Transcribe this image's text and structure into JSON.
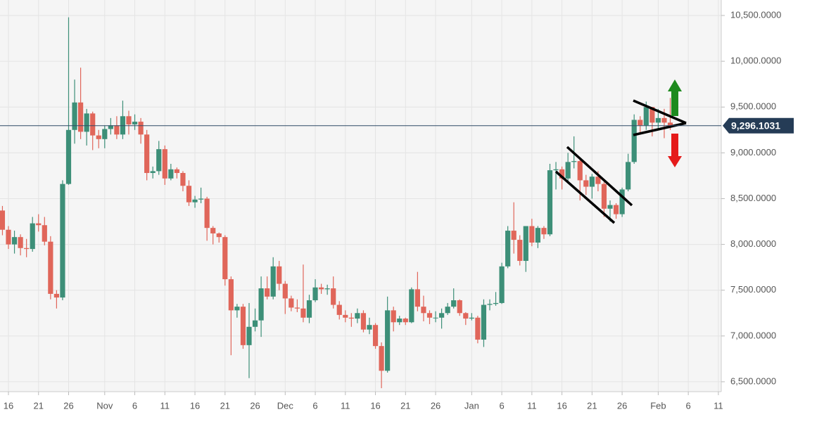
{
  "chart_data": {
    "type": "candlestick",
    "categories": [
      null,
      "16",
      null,
      null,
      null,
      null,
      "21",
      null,
      null,
      null,
      null,
      "26",
      null,
      null,
      null,
      null,
      null,
      "Nov",
      null,
      null,
      null,
      null,
      "6",
      null,
      null,
      null,
      null,
      "11",
      null,
      null,
      null,
      null,
      "16",
      null,
      null,
      null,
      null,
      "21",
      null,
      null,
      null,
      null,
      "26",
      null,
      null,
      null,
      null,
      "Dec",
      null,
      null,
      null,
      null,
      "6",
      null,
      null,
      null,
      null,
      "11",
      null,
      null,
      null,
      null,
      "16",
      null,
      null,
      null,
      null,
      "21",
      null,
      null,
      null,
      null,
      "26",
      null,
      null,
      null,
      null,
      null,
      "Jan",
      null,
      null,
      null,
      null,
      "6",
      null,
      null,
      null,
      null,
      "11",
      null,
      null,
      null,
      null,
      "16",
      null,
      null,
      null,
      null,
      "21",
      null,
      null,
      null,
      null,
      "26",
      null,
      null,
      null,
      null,
      null,
      "Feb",
      null,
      null,
      null,
      null,
      "6",
      null,
      null,
      null,
      null,
      "11"
    ],
    "open": [
      8370,
      8160,
      8000,
      8080,
      7960,
      7950,
      8230,
      8210,
      8030,
      7460,
      7420,
      8660,
      9250,
      9550,
      9230,
      9430,
      9190,
      9150,
      9260,
      9300,
      9200,
      9400,
      9310,
      9340,
      9200,
      8780,
      8800,
      9040,
      8720,
      8820,
      8780,
      8640,
      8460,
      8490,
      8500,
      8180,
      8120,
      8080,
      7620,
      7280,
      7320,
      6900,
      7100,
      7170,
      7520,
      7430,
      7760,
      7570,
      7410,
      7310,
      7300,
      7200,
      7390,
      7530,
      7510,
      7520,
      7340,
      7230,
      7200,
      7190,
      7250,
      7070,
      7120,
      6890,
      6620,
      7280,
      7150,
      7190,
      7150,
      7510,
      7320,
      7250,
      7200,
      7200,
      7250,
      7320,
      7390,
      7250,
      7190,
      7200,
      6960,
      7340,
      7350,
      7360,
      7760,
      8150,
      8050,
      7820,
      8200,
      8020,
      8180,
      8110,
      8810,
      8820,
      8720,
      8900,
      8910,
      8700,
      8630,
      8740,
      8660,
      8390,
      8430,
      8330,
      8600,
      8900,
      9360,
      9300,
      9500,
      9330,
      9380,
      9330,
      null,
      null,
      null,
      null,
      null,
      null,
      null,
      null
    ],
    "high": [
      8420,
      8200,
      8150,
      8110,
      8060,
      8300,
      8330,
      8300,
      8090,
      7500,
      8700,
      10480,
      9800,
      9930,
      9480,
      9450,
      9250,
      9300,
      9380,
      9400,
      9570,
      9460,
      9420,
      9380,
      9250,
      8850,
      9130,
      9080,
      8880,
      8840,
      8800,
      8700,
      8530,
      8620,
      8520,
      8200,
      8130,
      8100,
      7650,
      7350,
      7350,
      7360,
      7300,
      7650,
      7650,
      7860,
      7820,
      7600,
      7440,
      7400,
      7780,
      7450,
      7620,
      7570,
      7560,
      7650,
      7380,
      7280,
      7250,
      7300,
      7280,
      7200,
      7140,
      6930,
      7430,
      7320,
      7220,
      7200,
      7530,
      7700,
      7440,
      7280,
      7270,
      7300,
      7360,
      7520,
      7400,
      7260,
      7250,
      7220,
      7400,
      7400,
      7480,
      7800,
      8200,
      8460,
      8100,
      8200,
      8280,
      8200,
      8200,
      8880,
      8900,
      8850,
      9000,
      9180,
      8950,
      8760,
      8770,
      8800,
      8680,
      8480,
      8450,
      8620,
      8990,
      9420,
      9400,
      9560,
      9500,
      9480,
      9480,
      9600,
      null,
      null,
      null,
      null,
      null,
      null,
      null,
      null
    ],
    "low": [
      8100,
      7950,
      7900,
      7880,
      7860,
      7920,
      8140,
      7990,
      7400,
      7300,
      7390,
      8650,
      9100,
      9150,
      9080,
      9030,
      9050,
      9050,
      9200,
      9150,
      9150,
      9200,
      9250,
      9100,
      8700,
      8720,
      8760,
      8650,
      8700,
      8720,
      8580,
      8420,
      8400,
      8450,
      8040,
      8000,
      8020,
      7550,
      6790,
      7200,
      6860,
      6540,
      7050,
      6990,
      7400,
      7400,
      7500,
      7240,
      7270,
      7260,
      7150,
      7140,
      7370,
      7460,
      7450,
      7300,
      7180,
      7150,
      7100,
      7140,
      7040,
      7020,
      6860,
      6430,
      6600,
      7050,
      7120,
      7120,
      7140,
      7270,
      7160,
      7130,
      7150,
      7080,
      7230,
      7300,
      7220,
      7120,
      7170,
      6920,
      6880,
      7280,
      7330,
      7350,
      7740,
      7900,
      7770,
      7700,
      7980,
      7960,
      8060,
      8090,
      8600,
      8600,
      8690,
      8830,
      8480,
      8540,
      8500,
      8580,
      8300,
      8250,
      8280,
      8300,
      8580,
      8880,
      9200,
      9250,
      9180,
      9250,
      9160,
      9250,
      null,
      null,
      null,
      null,
      null,
      null,
      null,
      null
    ],
    "close": [
      8160,
      8000,
      8080,
      7960,
      7950,
      8230,
      8210,
      8030,
      7460,
      7420,
      8660,
      9250,
      9550,
      9230,
      9430,
      9190,
      9150,
      9260,
      9300,
      9200,
      9400,
      9310,
      9340,
      9200,
      8780,
      8800,
      9040,
      8720,
      8820,
      8780,
      8640,
      8460,
      8490,
      8500,
      8180,
      8120,
      8080,
      7620,
      7280,
      7320,
      6900,
      7100,
      7170,
      7520,
      7430,
      7760,
      7570,
      7410,
      7310,
      7300,
      7200,
      7390,
      7530,
      7510,
      7520,
      7340,
      7230,
      7200,
      7190,
      7250,
      7070,
      7120,
      6890,
      6620,
      7280,
      7150,
      7190,
      7150,
      7510,
      7320,
      7250,
      7200,
      7200,
      7250,
      7320,
      7390,
      7250,
      7190,
      7200,
      6960,
      7340,
      7350,
      7360,
      7760,
      8150,
      8050,
      7820,
      8200,
      8020,
      8180,
      8110,
      8810,
      8820,
      8720,
      8900,
      8910,
      8700,
      8630,
      8740,
      8660,
      8390,
      8430,
      8330,
      8600,
      8900,
      9360,
      9300,
      9500,
      9330,
      9380,
      9330,
      9296,
      null,
      null,
      null,
      null,
      null,
      null,
      null,
      null
    ],
    "up_color": "#3d8f78",
    "down_color": "#e0665a",
    "ylim": [
      6392,
      10669
    ],
    "yticks": [
      {
        "value": 6500,
        "label": "6,500.0000"
      },
      {
        "value": 7000,
        "label": "7,000.0000"
      },
      {
        "value": 7500,
        "label": "7,500.0000"
      },
      {
        "value": 8000,
        "label": "8,000.0000"
      },
      {
        "value": 8500,
        "label": "8,500.0000"
      },
      {
        "value": 9000,
        "label": "9,000.0000"
      },
      {
        "value": 9500,
        "label": "9,500.0000"
      },
      {
        "value": 10000,
        "label": "10,000.0000"
      },
      {
        "value": 10500,
        "label": "10,500.0000"
      }
    ],
    "last_price": {
      "value": 9296.1031,
      "label": "9,296.1031"
    },
    "grid": true
  }
}
